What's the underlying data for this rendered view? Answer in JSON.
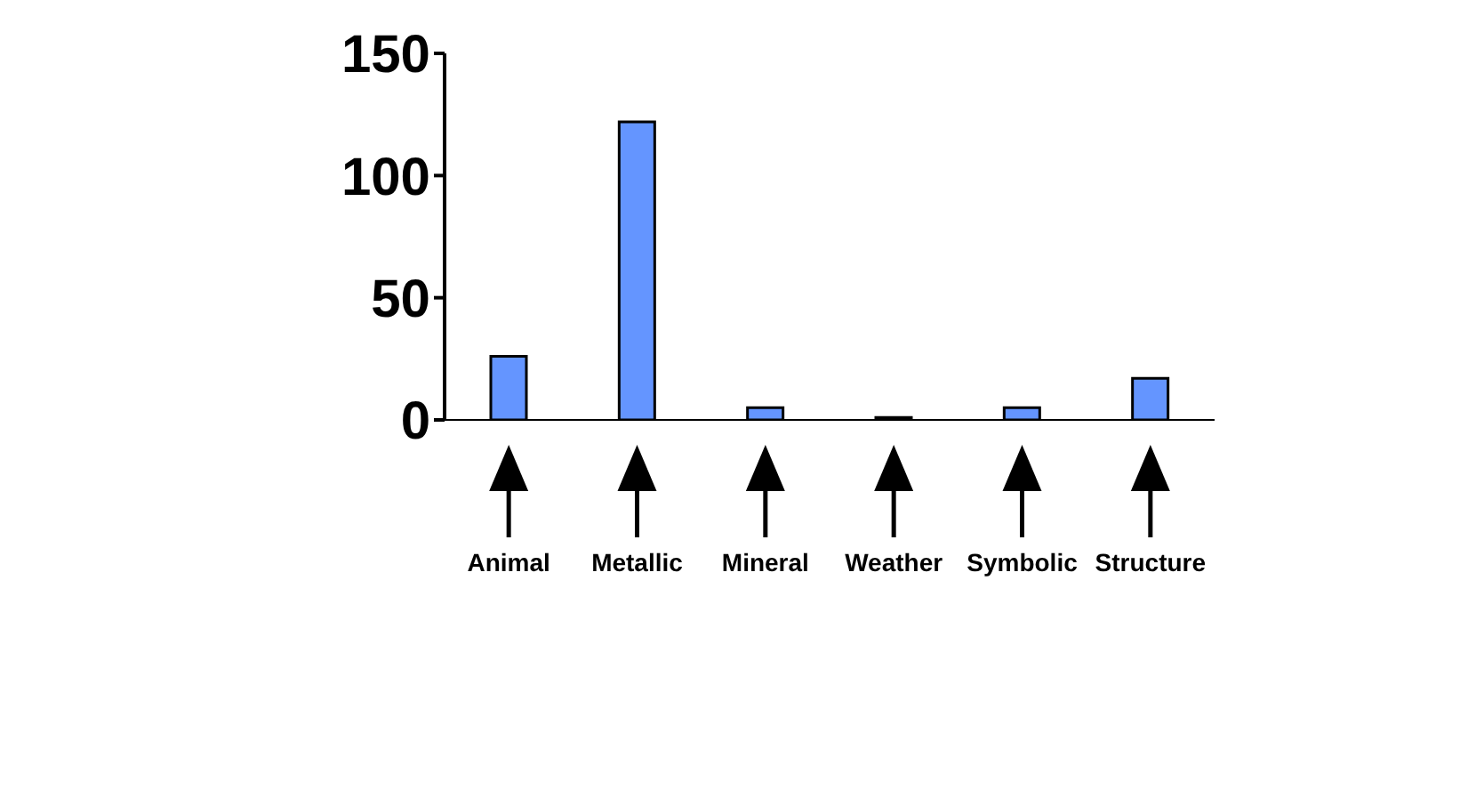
{
  "chart_data": {
    "type": "bar",
    "categories": [
      "Animal",
      "Metallic",
      "Mineral",
      "Weather",
      "Symbolic",
      "Structure"
    ],
    "values": [
      26,
      122,
      5,
      1,
      5,
      17
    ],
    "color": "#6495ff",
    "ylim": [
      0,
      150
    ],
    "yticks": [
      0,
      50,
      100,
      150
    ],
    "grid": false,
    "legend": false
  }
}
